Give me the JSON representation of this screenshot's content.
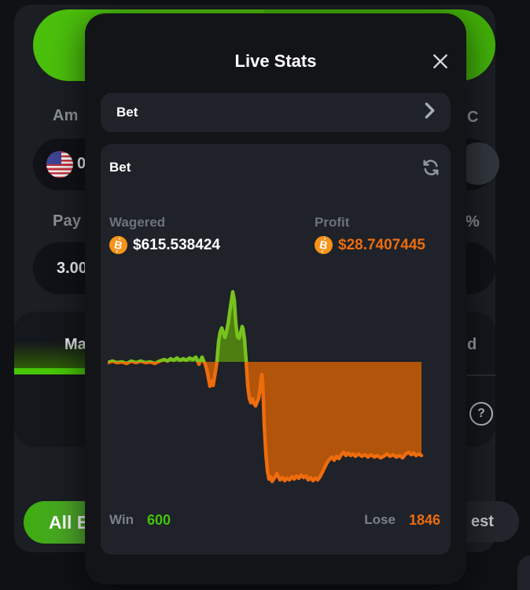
{
  "page": {
    "background": {
      "amount_label": "Am",
      "currency_value": "0",
      "currency_suffix": "C",
      "payout_label": "Pay",
      "payout_value": "3.00",
      "percent_suffix": "%",
      "mode_tab": "Ma",
      "advanced_suffix": "d",
      "help_glyph": "?",
      "all_bets_button": "All Be",
      "newest_suffix": "est"
    }
  },
  "modal": {
    "title": "Live Stats",
    "bet_selector": {
      "label": "Bet"
    },
    "stats_card": {
      "title": "Bet",
      "wagered_label": "Wagered",
      "wagered_value": "$615.538424",
      "profit_label": "Profit",
      "profit_value": "$28.7407445",
      "win_label": "Win",
      "win_count": "600",
      "lose_label": "Lose",
      "lose_count": "1846"
    }
  },
  "colors": {
    "accent_green": "#47bb0a",
    "win_green": "#44c40c",
    "lose_orange": "#ed6c0e",
    "bitcoin_orange": "#f7931a"
  },
  "chart_data": {
    "type": "area",
    "description": "Live bet profit curve; green area above zero baseline, orange area below",
    "baseline": 0,
    "x_range": [
      0,
      399
    ],
    "y_range": [
      -160,
      95
    ],
    "grid": false,
    "legend": false,
    "win_count": 600,
    "lose_count": 1846,
    "wagered_usd": 615.538424,
    "profit_usd": 28.7407445,
    "colors": {
      "green_stroke": "#77c31e",
      "green_fill": "#4e7e12",
      "orange_stroke": "#ed6c0e",
      "orange_fill": "#b2540a"
    },
    "points": [
      [
        0,
        -1
      ],
      [
        6,
        1
      ],
      [
        12,
        -1
      ],
      [
        18,
        0
      ],
      [
        24,
        -2
      ],
      [
        30,
        1
      ],
      [
        36,
        -1
      ],
      [
        42,
        1
      ],
      [
        48,
        -1
      ],
      [
        54,
        0
      ],
      [
        60,
        -2
      ],
      [
        66,
        1
      ],
      [
        72,
        3
      ],
      [
        76,
        1
      ],
      [
        80,
        4
      ],
      [
        84,
        2
      ],
      [
        88,
        5
      ],
      [
        92,
        2
      ],
      [
        96,
        4
      ],
      [
        100,
        2
      ],
      [
        104,
        5
      ],
      [
        108,
        3
      ],
      [
        112,
        6
      ],
      [
        114,
        2
      ],
      [
        116,
        -3
      ],
      [
        118,
        2
      ],
      [
        120,
        6
      ],
      [
        122,
        1
      ],
      [
        124,
        -3
      ],
      [
        126,
        -10
      ],
      [
        128,
        -20
      ],
      [
        130,
        -31
      ],
      [
        132,
        -24
      ],
      [
        134,
        -30
      ],
      [
        136,
        -18
      ],
      [
        138,
        -6
      ],
      [
        139,
        2
      ],
      [
        140,
        14
      ],
      [
        141,
        26
      ],
      [
        143,
        38
      ],
      [
        145,
        43
      ],
      [
        147,
        37
      ],
      [
        149,
        31
      ],
      [
        151,
        38
      ],
      [
        153,
        48
      ],
      [
        155,
        62
      ],
      [
        157,
        76
      ],
      [
        159,
        89
      ],
      [
        161,
        78
      ],
      [
        162,
        62
      ],
      [
        163,
        48
      ],
      [
        165,
        32
      ],
      [
        167,
        30
      ],
      [
        169,
        37
      ],
      [
        171,
        45
      ],
      [
        172,
        42
      ],
      [
        174,
        28
      ],
      [
        175,
        14
      ],
      [
        176,
        2
      ],
      [
        177,
        -14
      ],
      [
        178,
        -30
      ],
      [
        180,
        -46
      ],
      [
        182,
        -52
      ],
      [
        184,
        -47
      ],
      [
        186,
        -53
      ],
      [
        188,
        -56
      ],
      [
        190,
        -51
      ],
      [
        192,
        -46
      ],
      [
        194,
        -32
      ],
      [
        195,
        -22
      ],
      [
        196,
        -16
      ],
      [
        197,
        -26
      ],
      [
        198,
        -50
      ],
      [
        199,
        -80
      ],
      [
        201,
        -115
      ],
      [
        203,
        -138
      ],
      [
        205,
        -149
      ],
      [
        207,
        -146
      ],
      [
        209,
        -152
      ],
      [
        211,
        -149
      ],
      [
        213,
        -146
      ],
      [
        215,
        -142
      ],
      [
        217,
        -146
      ],
      [
        219,
        -150
      ],
      [
        222,
        -147
      ],
      [
        225,
        -151
      ],
      [
        228,
        -148
      ],
      [
        231,
        -150
      ],
      [
        234,
        -146
      ],
      [
        237,
        -149
      ],
      [
        240,
        -145
      ],
      [
        243,
        -148
      ],
      [
        246,
        -144
      ],
      [
        249,
        -147
      ],
      [
        252,
        -145
      ],
      [
        255,
        -150
      ],
      [
        258,
        -147
      ],
      [
        261,
        -151
      ],
      [
        264,
        -148
      ],
      [
        267,
        -150
      ],
      [
        270,
        -146
      ],
      [
        273,
        -140
      ],
      [
        276,
        -134
      ],
      [
        279,
        -128
      ],
      [
        282,
        -124
      ],
      [
        285,
        -121
      ],
      [
        288,
        -125
      ],
      [
        291,
        -120
      ],
      [
        294,
        -123
      ],
      [
        297,
        -118
      ],
      [
        300,
        -115
      ],
      [
        303,
        -119
      ],
      [
        306,
        -116
      ],
      [
        309,
        -119
      ],
      [
        312,
        -117
      ],
      [
        315,
        -120
      ],
      [
        319,
        -117
      ],
      [
        323,
        -120
      ],
      [
        327,
        -118
      ],
      [
        331,
        -121
      ],
      [
        335,
        -118
      ],
      [
        339,
        -121
      ],
      [
        343,
        -119
      ],
      [
        347,
        -122
      ],
      [
        351,
        -120
      ],
      [
        355,
        -117
      ],
      [
        359,
        -120
      ],
      [
        363,
        -118
      ],
      [
        367,
        -121
      ],
      [
        371,
        -119
      ],
      [
        375,
        -122
      ],
      [
        379,
        -117
      ],
      [
        383,
        -115
      ],
      [
        386,
        -118
      ],
      [
        389,
        -116
      ],
      [
        392,
        -119
      ],
      [
        396,
        -117
      ],
      [
        399,
        -119
      ]
    ]
  }
}
